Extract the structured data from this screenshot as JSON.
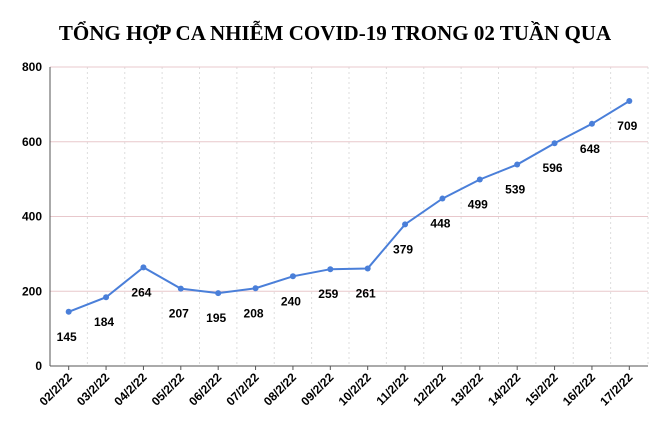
{
  "chart_data": {
    "type": "line",
    "title": "TỔNG HỢP CA NHIỄM COVID-19 TRONG 02 TUẦN QUA",
    "categories": [
      "02/2/22",
      "03/2/22",
      "04/2/22",
      "05/2/22",
      "06/2/22",
      "07/2/22",
      "08/2/22",
      "09/2/22",
      "10/2/22",
      "11/2/22",
      "12/2/22",
      "13/2/22",
      "14/2/22",
      "15/2/22",
      "16/2/22",
      "17/2/22"
    ],
    "values": [
      145,
      184,
      264,
      207,
      195,
      208,
      240,
      259,
      261,
      379,
      448,
      499,
      539,
      596,
      648,
      709
    ],
    "color": "#4a7fd9",
    "ylim": [
      0,
      800
    ],
    "yticks": [
      0,
      200,
      400,
      600,
      800
    ],
    "grid": true
  }
}
